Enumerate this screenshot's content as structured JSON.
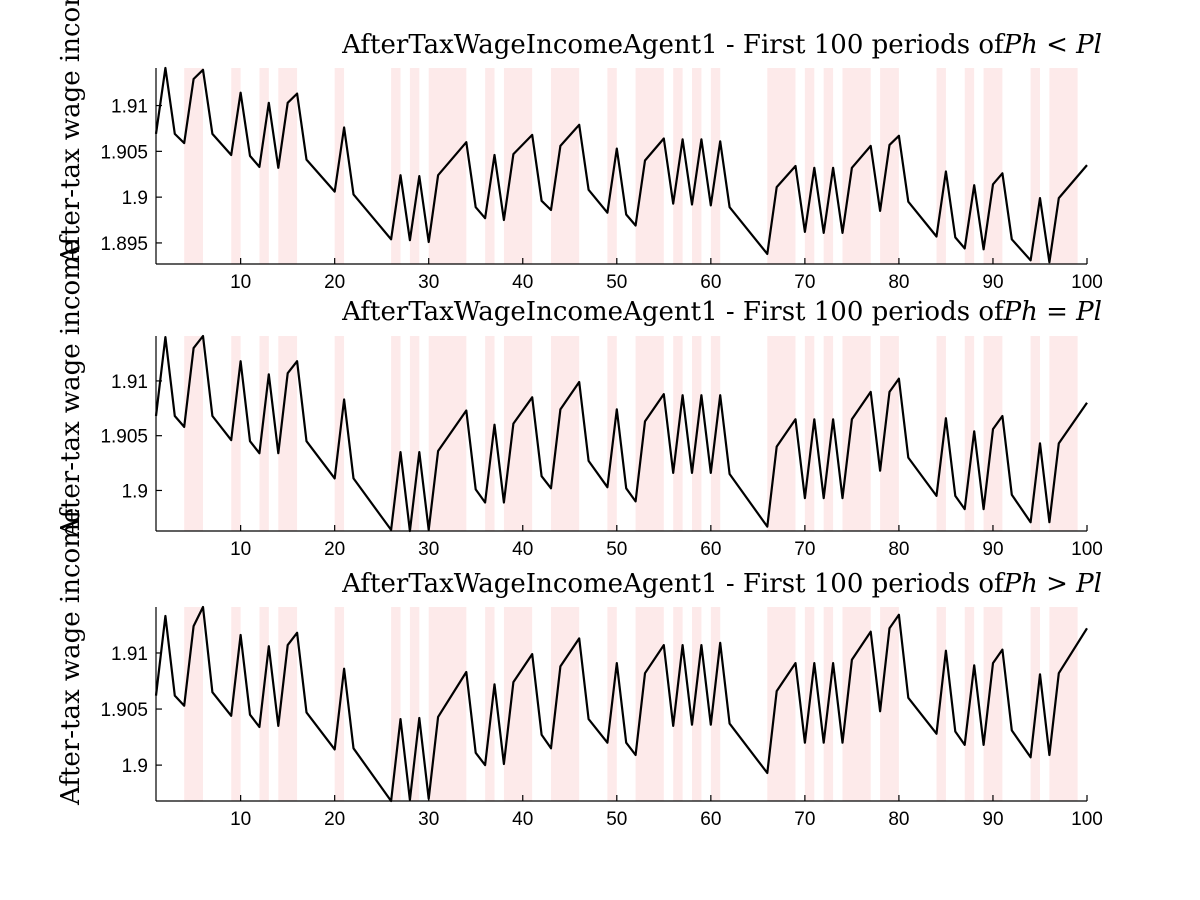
{
  "chart_data": [
    {
      "type": "line",
      "title_prefix": "AfterTaxWageIncomeAgent1 - First 100 periods of",
      "title_math": "Ph < Pl",
      "title": "AfterTaxWageIncomeAgent1 - First 100 periods of Ph < Pl",
      "xlabel": "",
      "ylabel": "After-tax wage income",
      "xlim": [
        1,
        100
      ],
      "ylim": [
        1.8927,
        1.9141
      ],
      "xticks": [
        "10",
        "20",
        "30",
        "40",
        "50",
        "60",
        "70",
        "80",
        "90",
        "100"
      ],
      "yticks": [
        "1.895",
        "1.9",
        "1.905",
        "1.91"
      ],
      "shaded_color": "#fdeaea",
      "shaded_periods": [
        [
          4,
          6
        ],
        [
          9,
          10
        ],
        [
          12,
          13
        ],
        [
          14,
          16
        ],
        [
          20,
          21
        ],
        [
          26,
          27
        ],
        [
          28,
          29
        ],
        [
          30,
          34
        ],
        [
          36,
          37
        ],
        [
          38,
          41
        ],
        [
          43,
          46
        ],
        [
          49,
          50
        ],
        [
          52,
          55
        ],
        [
          56,
          57
        ],
        [
          58,
          59
        ],
        [
          60,
          61
        ],
        [
          66,
          69
        ],
        [
          70,
          71
        ],
        [
          72,
          73
        ],
        [
          74,
          77
        ],
        [
          78,
          80
        ],
        [
          84,
          85
        ],
        [
          87,
          88
        ],
        [
          89,
          91
        ],
        [
          94,
          95
        ],
        [
          96,
          99
        ]
      ],
      "series": [
        {
          "x": [
            1,
            2,
            3,
            4,
            5,
            6,
            7,
            9,
            10,
            11,
            12,
            13,
            14,
            15,
            16,
            17,
            20,
            21,
            22,
            26,
            27,
            28,
            29,
            30,
            31,
            34,
            35,
            36,
            37,
            38,
            39,
            41,
            42,
            43,
            44,
            46,
            47,
            49,
            50,
            51,
            52,
            53,
            55,
            56,
            57,
            58,
            59,
            60,
            61,
            62,
            66,
            67,
            69,
            70,
            71,
            72,
            73,
            74,
            75,
            77,
            78,
            79,
            80,
            81,
            84,
            85,
            86,
            87,
            88,
            89,
            90,
            91,
            92,
            94,
            95,
            96,
            97,
            100
          ],
          "values": [
            1.9069,
            1.9141,
            1.9069,
            1.9059,
            1.9129,
            1.9139,
            1.9069,
            1.9046,
            1.9114,
            1.9045,
            1.9033,
            1.9103,
            1.9032,
            1.9103,
            1.9113,
            1.9041,
            1.9006,
            1.9076,
            1.9003,
            1.8954,
            1.9024,
            1.8953,
            1.9023,
            1.8951,
            1.9024,
            1.906,
            1.8989,
            1.8977,
            1.9046,
            1.8975,
            1.9047,
            1.9068,
            1.8996,
            1.8986,
            1.9056,
            1.9079,
            1.9008,
            1.8983,
            1.9053,
            1.8981,
            1.8969,
            1.904,
            1.9064,
            1.8993,
            1.9063,
            1.8992,
            1.9063,
            1.8991,
            1.9061,
            1.8989,
            1.8938,
            1.9011,
            1.9034,
            1.8962,
            1.9032,
            1.8961,
            1.9032,
            1.8961,
            1.9032,
            1.9056,
            1.8985,
            1.9057,
            1.9067,
            1.8995,
            1.8957,
            1.9028,
            1.8956,
            1.8944,
            1.9013,
            1.8943,
            1.9014,
            1.9026,
            1.8954,
            1.8931,
            1.8999,
            1.8929,
            1.8999,
            1.9035
          ]
        }
      ]
    },
    {
      "type": "line",
      "title_prefix": "AfterTaxWageIncomeAgent1 - First 100 periods of",
      "title_math": "Ph = Pl",
      "title": "AfterTaxWageIncomeAgent1 - First 100 periods of Ph = Pl",
      "xlabel": "",
      "ylabel": "After-tax wage income",
      "xlim": [
        1,
        100
      ],
      "ylim": [
        1.8963,
        1.9141
      ],
      "xticks": [
        "10",
        "20",
        "30",
        "40",
        "50",
        "60",
        "70",
        "80",
        "90",
        "100"
      ],
      "yticks": [
        "1.9",
        "1.905",
        "1.91"
      ],
      "shaded_color": "#fdeaea",
      "shaded_periods": [
        [
          4,
          6
        ],
        [
          9,
          10
        ],
        [
          12,
          13
        ],
        [
          14,
          16
        ],
        [
          20,
          21
        ],
        [
          26,
          27
        ],
        [
          28,
          29
        ],
        [
          30,
          34
        ],
        [
          36,
          37
        ],
        [
          38,
          41
        ],
        [
          43,
          46
        ],
        [
          49,
          50
        ],
        [
          52,
          55
        ],
        [
          56,
          57
        ],
        [
          58,
          59
        ],
        [
          60,
          61
        ],
        [
          66,
          69
        ],
        [
          70,
          71
        ],
        [
          72,
          73
        ],
        [
          74,
          77
        ],
        [
          78,
          80
        ],
        [
          84,
          85
        ],
        [
          87,
          88
        ],
        [
          89,
          91
        ],
        [
          94,
          95
        ],
        [
          96,
          99
        ]
      ],
      "series": [
        {
          "x": [
            1,
            2,
            3,
            4,
            5,
            6,
            7,
            9,
            10,
            11,
            12,
            13,
            14,
            15,
            16,
            17,
            20,
            21,
            22,
            26,
            27,
            28,
            29,
            30,
            31,
            34,
            35,
            36,
            37,
            38,
            39,
            41,
            42,
            43,
            44,
            46,
            47,
            49,
            50,
            51,
            52,
            53,
            55,
            56,
            57,
            58,
            59,
            60,
            61,
            62,
            66,
            67,
            69,
            70,
            71,
            72,
            73,
            74,
            75,
            77,
            78,
            79,
            80,
            81,
            84,
            85,
            86,
            87,
            88,
            89,
            90,
            91,
            92,
            94,
            95,
            96,
            97,
            100
          ],
          "values": [
            1.9068,
            1.914,
            1.9068,
            1.9058,
            1.913,
            1.9141,
            1.9068,
            1.9046,
            1.9118,
            1.9045,
            1.9034,
            1.9106,
            1.9034,
            1.9107,
            1.9118,
            1.9045,
            1.9011,
            1.9083,
            1.9011,
            1.8964,
            1.9035,
            1.8963,
            1.9035,
            1.8964,
            1.9036,
            1.9073,
            1.9001,
            1.8989,
            1.906,
            1.8989,
            1.9061,
            1.9085,
            1.9013,
            1.9002,
            1.9074,
            1.9099,
            1.9027,
            1.9003,
            1.9074,
            1.9002,
            1.899,
            1.9063,
            1.9088,
            1.9016,
            1.9087,
            1.9016,
            1.9087,
            1.9016,
            1.9087,
            1.9015,
            1.8967,
            1.904,
            1.9065,
            1.8993,
            1.9065,
            1.8993,
            1.9065,
            1.8993,
            1.9065,
            1.909,
            1.9018,
            1.909,
            1.9102,
            1.903,
            1.8995,
            1.9066,
            1.8995,
            1.8983,
            1.9054,
            1.8983,
            1.9056,
            1.9068,
            1.8996,
            1.8971,
            1.9043,
            1.8971,
            1.9043,
            1.908
          ]
        }
      ]
    },
    {
      "type": "line",
      "title_prefix": "AfterTaxWageIncomeAgent1 - First 100 periods of",
      "title_math": "Ph > Pl",
      "title": "AfterTaxWageIncomeAgent1 - First 100 periods of Ph > Pl",
      "xlabel": "",
      "ylabel": "After-tax wage income",
      "xlim": [
        1,
        100
      ],
      "ylim": [
        1.8968,
        1.9141
      ],
      "xticks": [
        "10",
        "20",
        "30",
        "40",
        "50",
        "60",
        "70",
        "80",
        "90",
        "100"
      ],
      "yticks": [
        "1.9",
        "1.905",
        "1.91"
      ],
      "shaded_color": "#fdeaea",
      "shaded_periods": [
        [
          4,
          6
        ],
        [
          9,
          10
        ],
        [
          12,
          13
        ],
        [
          14,
          16
        ],
        [
          20,
          21
        ],
        [
          26,
          27
        ],
        [
          28,
          29
        ],
        [
          30,
          34
        ],
        [
          36,
          37
        ],
        [
          38,
          41
        ],
        [
          43,
          46
        ],
        [
          49,
          50
        ],
        [
          52,
          55
        ],
        [
          56,
          57
        ],
        [
          58,
          59
        ],
        [
          60,
          61
        ],
        [
          66,
          69
        ],
        [
          70,
          71
        ],
        [
          72,
          73
        ],
        [
          74,
          77
        ],
        [
          78,
          80
        ],
        [
          84,
          85
        ],
        [
          87,
          88
        ],
        [
          89,
          91
        ],
        [
          94,
          95
        ],
        [
          96,
          99
        ]
      ],
      "series": [
        {
          "x": [
            1,
            2,
            3,
            4,
            5,
            6,
            7,
            9,
            10,
            11,
            12,
            13,
            14,
            15,
            16,
            17,
            20,
            21,
            22,
            26,
            27,
            28,
            29,
            30,
            31,
            34,
            35,
            36,
            37,
            38,
            39,
            41,
            42,
            43,
            44,
            46,
            47,
            49,
            50,
            51,
            52,
            53,
            55,
            56,
            57,
            58,
            59,
            60,
            61,
            62,
            66,
            67,
            69,
            70,
            71,
            72,
            73,
            74,
            75,
            77,
            78,
            79,
            80,
            81,
            84,
            85,
            86,
            87,
            88,
            89,
            90,
            91,
            92,
            94,
            95,
            96,
            97,
            100
          ],
          "values": [
            1.9062,
            1.9133,
            1.9062,
            1.9053,
            1.9124,
            1.9141,
            1.9065,
            1.9044,
            1.9116,
            1.9045,
            1.9034,
            1.9106,
            1.9035,
            1.9107,
            1.9118,
            1.9047,
            1.9014,
            1.9086,
            1.9015,
            1.8968,
            1.9041,
            1.8969,
            1.9042,
            1.897,
            1.9043,
            1.9083,
            1.9011,
            1.9,
            1.9072,
            1.9001,
            1.9074,
            1.9099,
            1.9027,
            1.9015,
            1.9088,
            1.9113,
            1.9041,
            1.902,
            1.9091,
            1.902,
            1.9009,
            1.9082,
            1.9107,
            1.9035,
            1.9107,
            1.9036,
            1.9107,
            1.9036,
            1.9109,
            1.9037,
            1.8993,
            1.9066,
            1.9091,
            1.902,
            1.9091,
            1.902,
            1.9091,
            1.902,
            1.9094,
            1.9119,
            1.9048,
            1.9122,
            1.9134,
            1.906,
            1.9028,
            1.9102,
            1.903,
            1.9018,
            1.9089,
            1.9018,
            1.9091,
            1.9103,
            1.9031,
            1.9007,
            1.9081,
            1.9009,
            1.9082,
            1.9122
          ]
        }
      ]
    }
  ]
}
